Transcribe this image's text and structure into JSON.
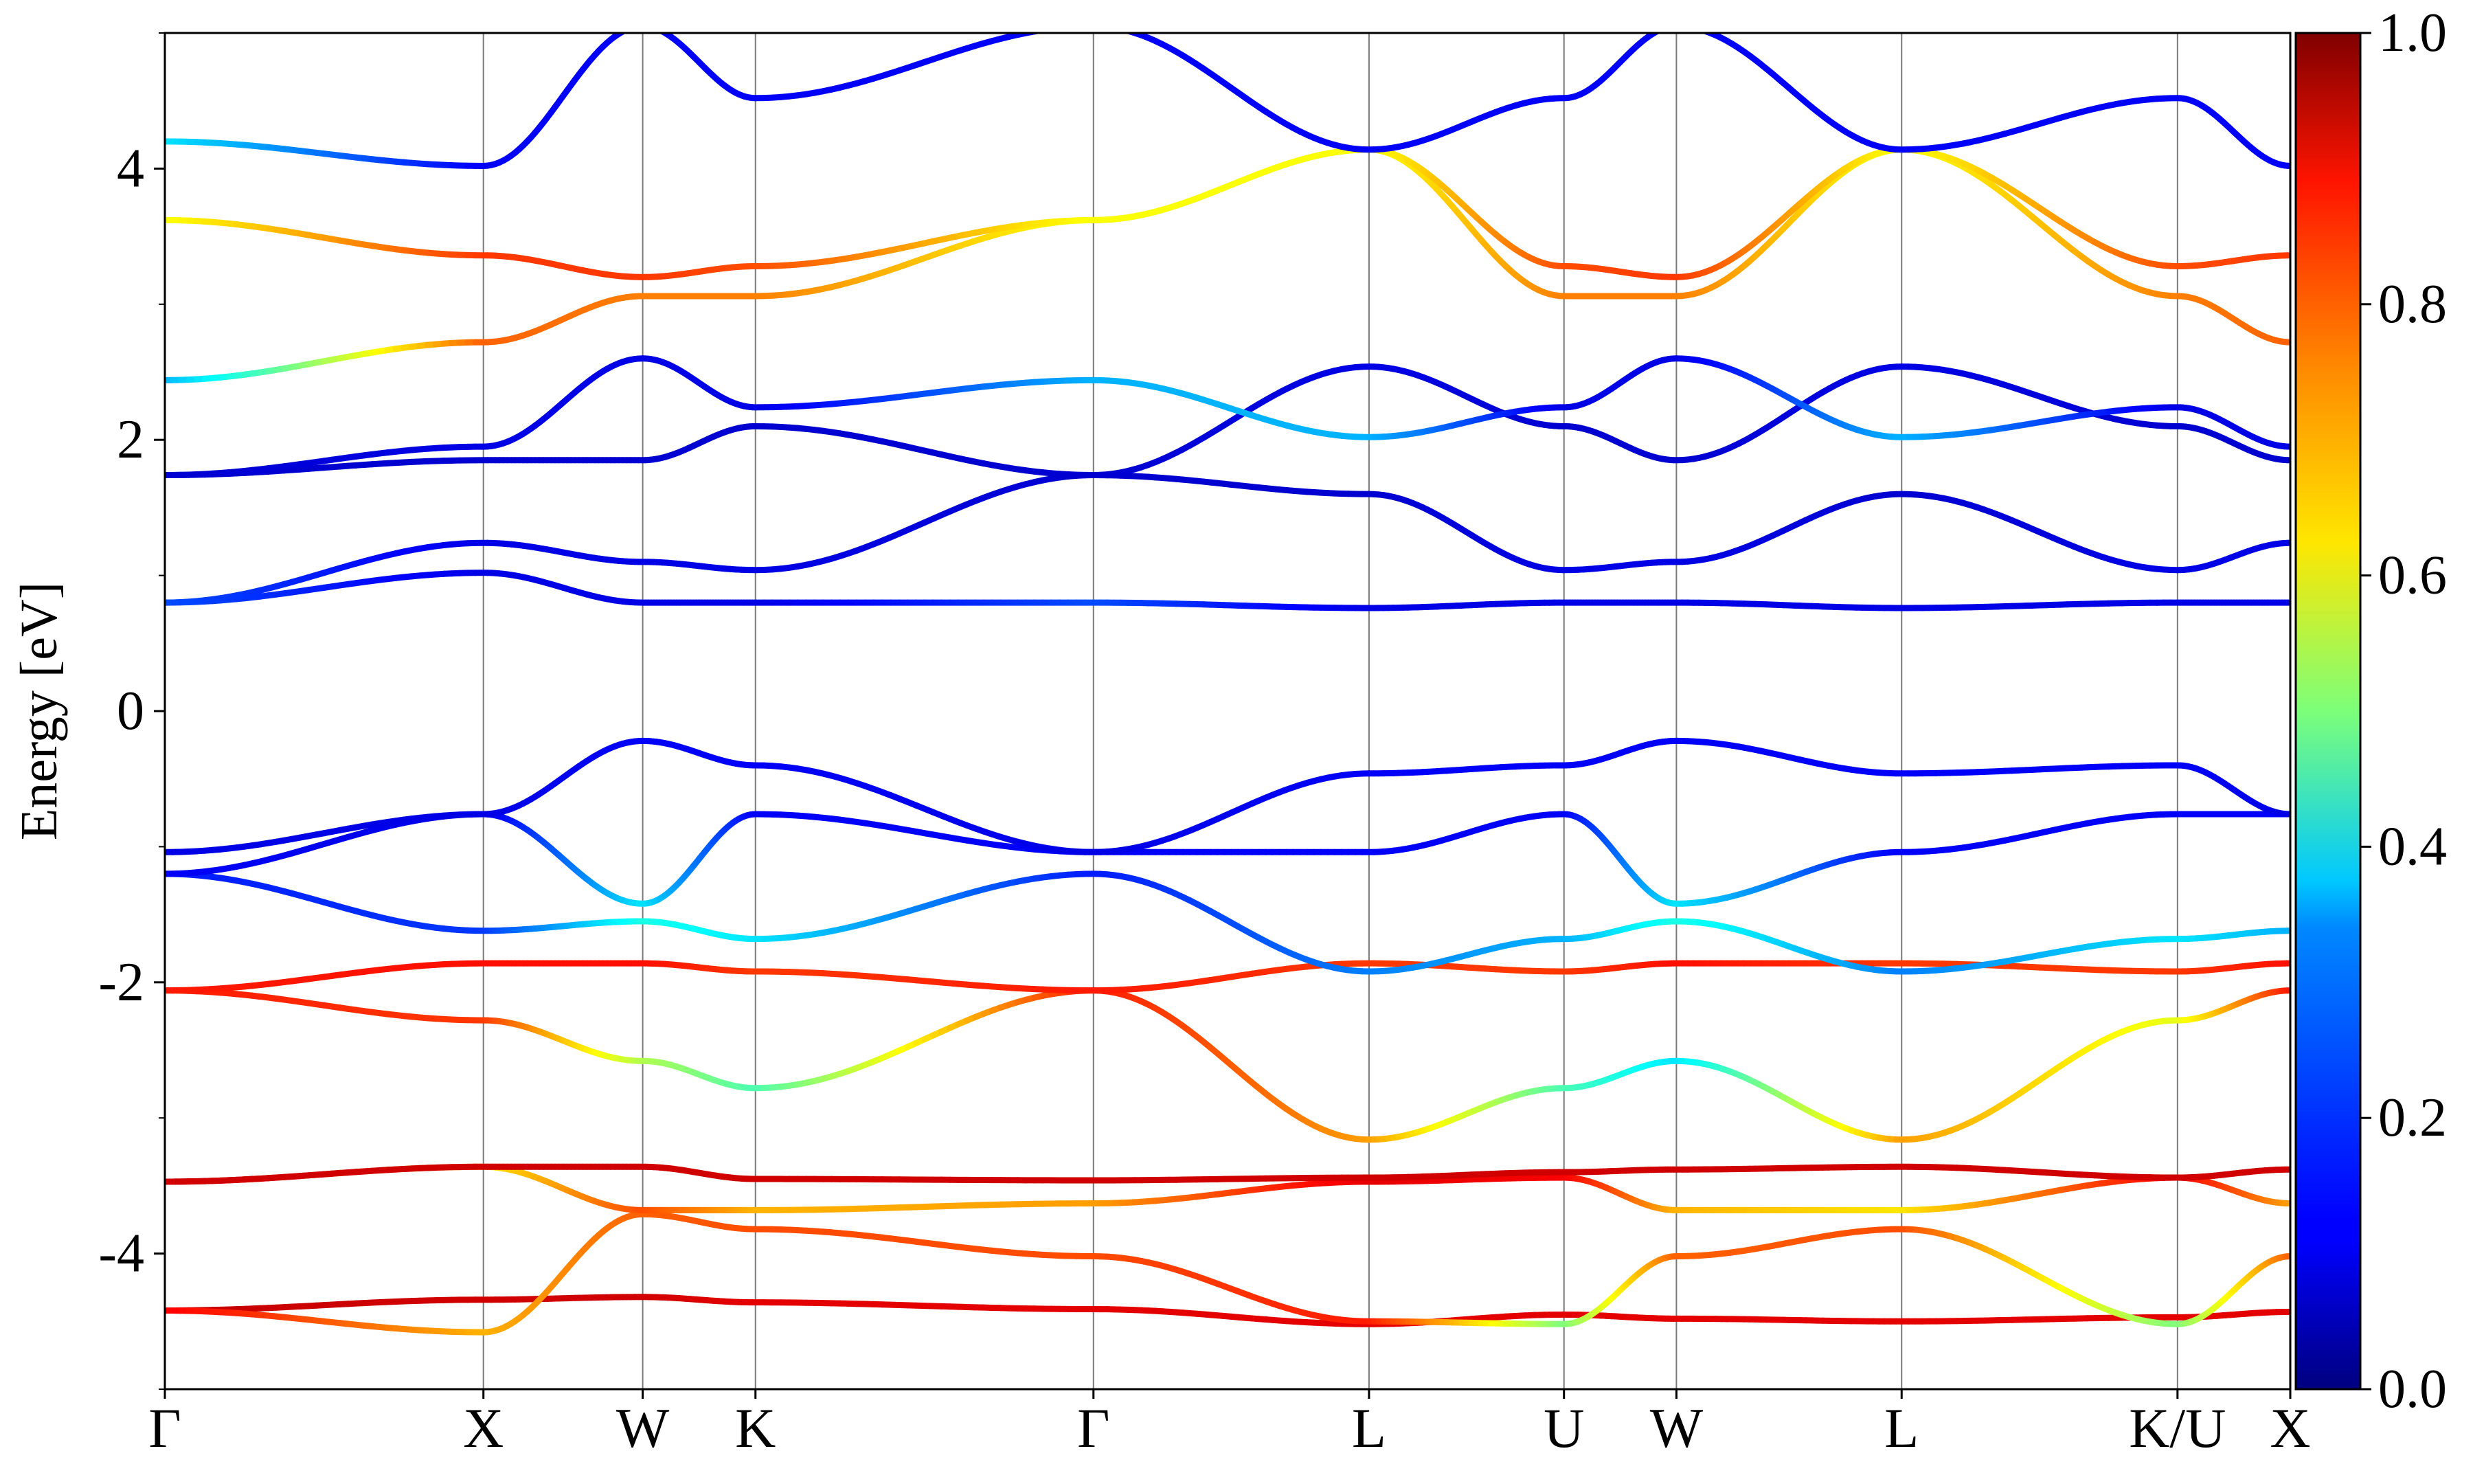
{
  "chart_data": {
    "type": "line",
    "title": "",
    "xlabel": "",
    "ylabel": "Energy [eV]",
    "ylim": [
      -5,
      5
    ],
    "grid": "vertical lines at high-symmetry points",
    "legend": "none",
    "x_ticks": [
      {
        "label": "Γ",
        "pos": 0
      },
      {
        "label": "X",
        "pos": 1.0
      },
      {
        "label": "W",
        "pos": 1.5
      },
      {
        "label": "K",
        "pos": 1.854
      },
      {
        "label": "Γ",
        "pos": 2.915
      },
      {
        "label": "L",
        "pos": 3.78
      },
      {
        "label": "U",
        "pos": 4.392
      },
      {
        "label": "W",
        "pos": 4.745
      },
      {
        "label": "L",
        "pos": 5.452
      },
      {
        "label": "K/U",
        "pos": 6.318
      },
      {
        "label": "X",
        "pos": 6.672
      }
    ],
    "xlim": [
      0,
      6.672
    ],
    "y_ticks": [
      {
        "label": "4",
        "value": 4
      },
      {
        "label": "2",
        "value": 2
      },
      {
        "label": "0",
        "value": 0
      },
      {
        "label": "-2",
        "value": -2
      },
      {
        "label": "-4",
        "value": -4
      }
    ],
    "y_minor_ticks": [
      5,
      3,
      1,
      -1,
      -3,
      -5
    ],
    "colorbar": {
      "min": 0.0,
      "max": 1.0,
      "colormap": "jet",
      "tick_labels": [
        {
          "label": "1.0",
          "value": 1.0
        },
        {
          "label": "0.8",
          "value": 0.8
        },
        {
          "label": "0.6",
          "value": 0.6
        },
        {
          "label": "0.4",
          "value": 0.4
        },
        {
          "label": "0.2",
          "value": 0.2
        },
        {
          "label": "0.0",
          "value": 0.0
        }
      ]
    },
    "bands": [
      {
        "E": [
          -4.42,
          -4.34,
          -4.32,
          -4.36,
          -4.41,
          -4.52,
          -4.45,
          -4.48,
          -4.5,
          -4.47,
          -4.43,
          -4.3
        ],
        "w": [
          0.93,
          0.92,
          0.92,
          0.9,
          0.9,
          0.9,
          0.9,
          0.9,
          0.9,
          0.9,
          0.9,
          0.92
        ]
      },
      {
        "E": [
          -4.42,
          -4.58,
          -3.71,
          -3.82,
          -4.02,
          -4.5,
          -4.52,
          -4.02,
          -3.82,
          -4.52,
          -4.02,
          -3.72
        ],
        "w": [
          0.88,
          0.7,
          0.78,
          0.8,
          0.8,
          0.85,
          0.5,
          0.78,
          0.8,
          0.5,
          0.78,
          0.8
        ]
      },
      {
        "E": [
          -3.47,
          -3.36,
          -3.68,
          -3.68,
          -3.63,
          -3.47,
          -3.44,
          -3.68,
          -3.68,
          -3.44,
          -3.63,
          -3.68
        ],
        "w": [
          0.9,
          0.65,
          0.8,
          0.7,
          0.72,
          0.9,
          0.88,
          0.7,
          0.65,
          0.88,
          0.72,
          0.7
        ]
      },
      {
        "E": [
          -3.47,
          -3.36,
          -3.36,
          -3.45,
          -3.46,
          -3.44,
          -3.4,
          -3.38,
          -3.36,
          -3.44,
          -3.38,
          -3.36
        ],
        "w": [
          0.92,
          0.92,
          0.92,
          0.92,
          0.92,
          0.92,
          0.92,
          0.92,
          0.92,
          0.92,
          0.92,
          0.92
        ]
      },
      {
        "E": [
          -2.06,
          -2.28,
          -2.58,
          -2.78,
          -2.06,
          -3.16,
          -2.78,
          -2.58,
          -3.16,
          -2.28,
          -2.06,
          -2.28
        ],
        "w": [
          0.85,
          0.82,
          0.55,
          0.45,
          0.85,
          0.72,
          0.45,
          0.35,
          0.72,
          0.6,
          0.85,
          0.8
        ]
      },
      {
        "E": [
          -2.06,
          -1.86,
          -1.86,
          -1.92,
          -2.06,
          -1.86,
          -1.92,
          -1.86,
          -1.86,
          -1.92,
          -1.86,
          -1.86
        ],
        "w": [
          0.85,
          0.86,
          0.86,
          0.82,
          0.85,
          0.82,
          0.82,
          0.86,
          0.82,
          0.82,
          0.86,
          0.86
        ]
      },
      {
        "E": [
          -1.2,
          -1.62,
          -1.55,
          -1.68,
          -1.2,
          -1.92,
          -1.68,
          -1.55,
          -1.92,
          -1.68,
          -1.62,
          -1.62
        ],
        "w": [
          0.15,
          0.18,
          0.4,
          0.35,
          0.15,
          0.25,
          0.3,
          0.4,
          0.25,
          0.35,
          0.3,
          0.18
        ]
      },
      {
        "E": [
          -1.2,
          -0.76,
          -1.42,
          -0.76,
          -1.04,
          -1.04,
          -0.76,
          -1.42,
          -1.04,
          -0.76,
          -0.76,
          -0.76
        ],
        "w": [
          0.12,
          0.1,
          0.35,
          0.12,
          0.12,
          0.12,
          0.12,
          0.35,
          0.12,
          0.12,
          0.12,
          0.12
        ]
      },
      {
        "E": [
          -1.04,
          -0.76,
          -0.22,
          -0.4,
          -1.04,
          -0.46,
          -0.4,
          -0.22,
          -0.46,
          -0.4,
          -0.76,
          -0.76
        ],
        "w": [
          0.1,
          0.1,
          0.12,
          0.12,
          0.1,
          0.12,
          0.12,
          0.12,
          0.12,
          0.12,
          0.1,
          0.1
        ]
      },
      {
        "E": [
          0.8,
          1.02,
          0.8,
          0.8,
          0.8,
          0.76,
          0.8,
          0.8,
          0.76,
          0.8,
          0.8,
          1.02
        ],
        "w": [
          0.2,
          0.1,
          0.1,
          0.1,
          0.2,
          0.1,
          0.1,
          0.1,
          0.1,
          0.1,
          0.1,
          0.1
        ]
      },
      {
        "E": [
          0.8,
          1.24,
          1.1,
          1.04,
          1.74,
          1.6,
          1.04,
          1.1,
          1.6,
          1.04,
          1.24,
          1.24
        ],
        "w": [
          0.2,
          0.1,
          0.1,
          0.1,
          0.08,
          0.08,
          0.1,
          0.1,
          0.08,
          0.1,
          0.1,
          0.1
        ]
      },
      {
        "E": [
          1.74,
          1.85,
          1.85,
          2.1,
          1.74,
          2.54,
          2.1,
          1.85,
          2.54,
          2.1,
          1.85,
          1.85
        ],
        "w": [
          0.08,
          0.08,
          0.08,
          0.08,
          0.08,
          0.1,
          0.08,
          0.08,
          0.1,
          0.08,
          0.08,
          0.08
        ]
      },
      {
        "E": [
          1.74,
          1.95,
          2.6,
          2.24,
          2.44,
          2.02,
          2.24,
          2.6,
          2.02,
          2.24,
          1.95,
          1.95
        ],
        "w": [
          0.08,
          0.1,
          0.1,
          0.1,
          0.3,
          0.3,
          0.1,
          0.1,
          0.3,
          0.1,
          0.1,
          0.1
        ]
      },
      {
        "E": [
          2.44,
          2.72,
          3.06,
          3.06,
          3.62,
          4.14,
          3.06,
          3.06,
          4.14,
          3.06,
          2.72,
          2.72
        ],
        "w": [
          0.3,
          0.78,
          0.75,
          0.75,
          0.62,
          0.62,
          0.75,
          0.75,
          0.62,
          0.75,
          0.78,
          0.78
        ]
      },
      {
        "E": [
          3.62,
          3.36,
          3.2,
          3.28,
          3.62,
          4.14,
          3.28,
          3.2,
          4.14,
          3.28,
          3.36,
          3.36
        ],
        "w": [
          0.62,
          0.82,
          0.82,
          0.8,
          0.62,
          0.62,
          0.8,
          0.82,
          0.62,
          0.8,
          0.82,
          0.82
        ]
      },
      {
        "E": [
          4.2,
          4.02,
          5.05,
          4.52,
          5.05,
          4.14,
          4.52,
          5.05,
          4.14,
          4.52,
          4.02,
          4.02
        ],
        "w": [
          0.35,
          0.12,
          0.12,
          0.12,
          0.12,
          0.12,
          0.12,
          0.12,
          0.12,
          0.12,
          0.12,
          0.12
        ]
      }
    ]
  }
}
